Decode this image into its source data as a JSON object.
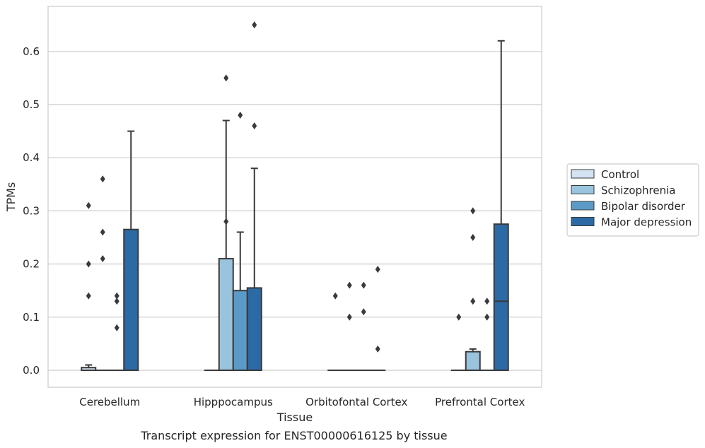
{
  "caption": "Transcript expression for ENST00000616125 by tissue",
  "chart_data": {
    "type": "box",
    "xlabel": "Tissue",
    "ylabel": "TPMs",
    "ylim": [
      -0.032,
      0.685
    ],
    "yticks": [
      0.0,
      0.1,
      0.2,
      0.3,
      0.4,
      0.5,
      0.6
    ],
    "ytick_labels": [
      "0.0",
      "0.1",
      "0.2",
      "0.3",
      "0.4",
      "0.5",
      "0.6"
    ],
    "grid": "horizontal",
    "legend_position": "right",
    "categories": [
      "Cerebellum",
      "Hipppocampus",
      "Orbitofontal Cortex",
      "Prefrontal Cortex"
    ],
    "series": [
      {
        "name": "Control",
        "color": "#d3e3f2",
        "boxes": [
          {
            "q1": 0.0,
            "median": 0.0,
            "q3": 0.005,
            "whislo": 0.0,
            "whishi": 0.01,
            "fliers": [
              0.31,
              0.2,
              0.14
            ]
          },
          {
            "q1": 0.0,
            "median": 0.0,
            "q3": 0.0,
            "whislo": 0.0,
            "whishi": 0.0,
            "fliers": []
          },
          {
            "q1": 0.0,
            "median": 0.0,
            "q3": 0.0,
            "whislo": 0.0,
            "whishi": 0.0,
            "fliers": [
              0.14
            ]
          },
          {
            "q1": 0.0,
            "median": 0.0,
            "q3": 0.0,
            "whislo": 0.0,
            "whishi": 0.0,
            "fliers": [
              0.1
            ]
          }
        ]
      },
      {
        "name": "Schizophrenia",
        "color": "#9ac3dd",
        "boxes": [
          {
            "q1": 0.0,
            "median": 0.0,
            "q3": 0.0,
            "whislo": 0.0,
            "whishi": 0.0,
            "fliers": [
              0.36,
              0.26,
              0.21
            ]
          },
          {
            "q1": 0.0,
            "median": 0.0,
            "q3": 0.21,
            "whislo": 0.0,
            "whishi": 0.47,
            "fliers": [
              0.28,
              0.55
            ]
          },
          {
            "q1": 0.0,
            "median": 0.0,
            "q3": 0.0,
            "whislo": 0.0,
            "whishi": 0.0,
            "fliers": [
              0.16,
              0.1
            ]
          },
          {
            "q1": 0.0,
            "median": 0.0,
            "q3": 0.035,
            "whislo": 0.0,
            "whishi": 0.04,
            "fliers": [
              0.3,
              0.25,
              0.13
            ]
          }
        ]
      },
      {
        "name": "Bipolar disorder",
        "color": "#5b9ac7",
        "boxes": [
          {
            "q1": 0.0,
            "median": 0.0,
            "q3": 0.0,
            "whislo": 0.0,
            "whishi": 0.0,
            "fliers": [
              0.14,
              0.13,
              0.08
            ]
          },
          {
            "q1": 0.0,
            "median": 0.0,
            "q3": 0.15,
            "whislo": 0.0,
            "whishi": 0.26,
            "fliers": [
              0.48
            ]
          },
          {
            "q1": 0.0,
            "median": 0.0,
            "q3": 0.0,
            "whislo": 0.0,
            "whishi": 0.0,
            "fliers": [
              0.16,
              0.11
            ]
          },
          {
            "q1": 0.0,
            "median": 0.0,
            "q3": 0.0,
            "whislo": 0.0,
            "whishi": 0.0,
            "fliers": [
              0.13,
              0.1
            ]
          }
        ]
      },
      {
        "name": "Major depression",
        "color": "#2b6aa5",
        "boxes": [
          {
            "q1": 0.0,
            "median": 0.0,
            "q3": 0.265,
            "whislo": 0.0,
            "whishi": 0.45,
            "fliers": []
          },
          {
            "q1": 0.0,
            "median": 0.0,
            "q3": 0.155,
            "whislo": 0.0,
            "whishi": 0.38,
            "fliers": [
              0.65,
              0.46
            ]
          },
          {
            "q1": 0.0,
            "median": 0.0,
            "q3": 0.0,
            "whislo": 0.0,
            "whishi": 0.0,
            "fliers": [
              0.19,
              0.04
            ]
          },
          {
            "q1": 0.0,
            "median": 0.13,
            "q3": 0.275,
            "whislo": 0.0,
            "whishi": 0.62,
            "fliers": []
          }
        ]
      }
    ]
  }
}
